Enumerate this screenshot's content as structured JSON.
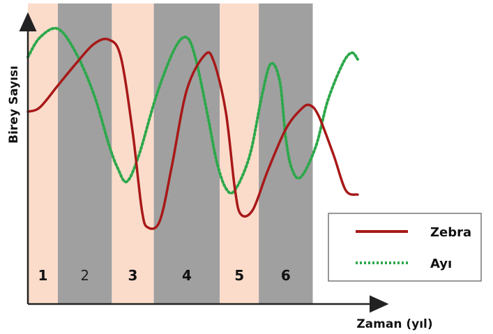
{
  "chart_data": {
    "type": "line",
    "xlabel": "Zaman (yıl)",
    "ylabel": "Birey Sayısı",
    "grid": false,
    "legend_position": "bottom-right",
    "zones": [
      {
        "label": "1",
        "x0": 0,
        "x1": 10,
        "color": "#fbdccb"
      },
      {
        "label": "2",
        "x0": 10,
        "x1": 28,
        "color": "#a0a0a0"
      },
      {
        "label": "3",
        "x0": 28,
        "x1": 42,
        "color": "#fbdccb"
      },
      {
        "label": "4",
        "x0": 42,
        "x1": 64,
        "color": "#a0a0a0"
      },
      {
        "label": "5",
        "x0": 64,
        "x1": 77,
        "color": "#fbdccb"
      },
      {
        "label": "6",
        "x0": 77,
        "x1": 95,
        "color": "#a0a0a0"
      }
    ],
    "series": [
      {
        "name": "Zebra",
        "color": "#a81818",
        "style": "solid",
        "points": [
          [
            0,
            60
          ],
          [
            4,
            62
          ],
          [
            10,
            72
          ],
          [
            16,
            82
          ],
          [
            22,
            91
          ],
          [
            27,
            93
          ],
          [
            31,
            85
          ],
          [
            35,
            50
          ],
          [
            38,
            15
          ],
          [
            40,
            7
          ],
          [
            44,
            10
          ],
          [
            48,
            35
          ],
          [
            53,
            70
          ],
          [
            59,
            86
          ],
          [
            62,
            83
          ],
          [
            66,
            60
          ],
          [
            69,
            25
          ],
          [
            71,
            13
          ],
          [
            75,
            15
          ],
          [
            80,
            33
          ],
          [
            86,
            52
          ],
          [
            91,
            61
          ],
          [
            94,
            63
          ],
          [
            97,
            58
          ],
          [
            102,
            40
          ],
          [
            106,
            24
          ],
          [
            110,
            22
          ]
        ]
      },
      {
        "name": "Ayı",
        "color": "#2da84b",
        "style": "dotted",
        "points": [
          [
            0,
            85
          ],
          [
            4,
            94
          ],
          [
            10,
            98
          ],
          [
            16,
            87
          ],
          [
            22,
            68
          ],
          [
            27,
            45
          ],
          [
            30,
            34
          ],
          [
            33,
            28
          ],
          [
            37,
            40
          ],
          [
            43,
            68
          ],
          [
            49,
            89
          ],
          [
            53,
            94
          ],
          [
            56,
            84
          ],
          [
            60,
            58
          ],
          [
            63,
            37
          ],
          [
            66,
            25
          ],
          [
            69,
            24
          ],
          [
            74,
            40
          ],
          [
            78,
            67
          ],
          [
            81,
            82
          ],
          [
            84,
            74
          ],
          [
            86,
            48
          ],
          [
            88,
            34
          ],
          [
            91,
            30
          ],
          [
            96,
            44
          ],
          [
            100,
            65
          ],
          [
            105,
            82
          ],
          [
            108,
            87
          ],
          [
            110,
            84
          ]
        ]
      }
    ],
    "xlim": [
      0,
      120
    ],
    "ylim": [
      0,
      100
    ]
  }
}
